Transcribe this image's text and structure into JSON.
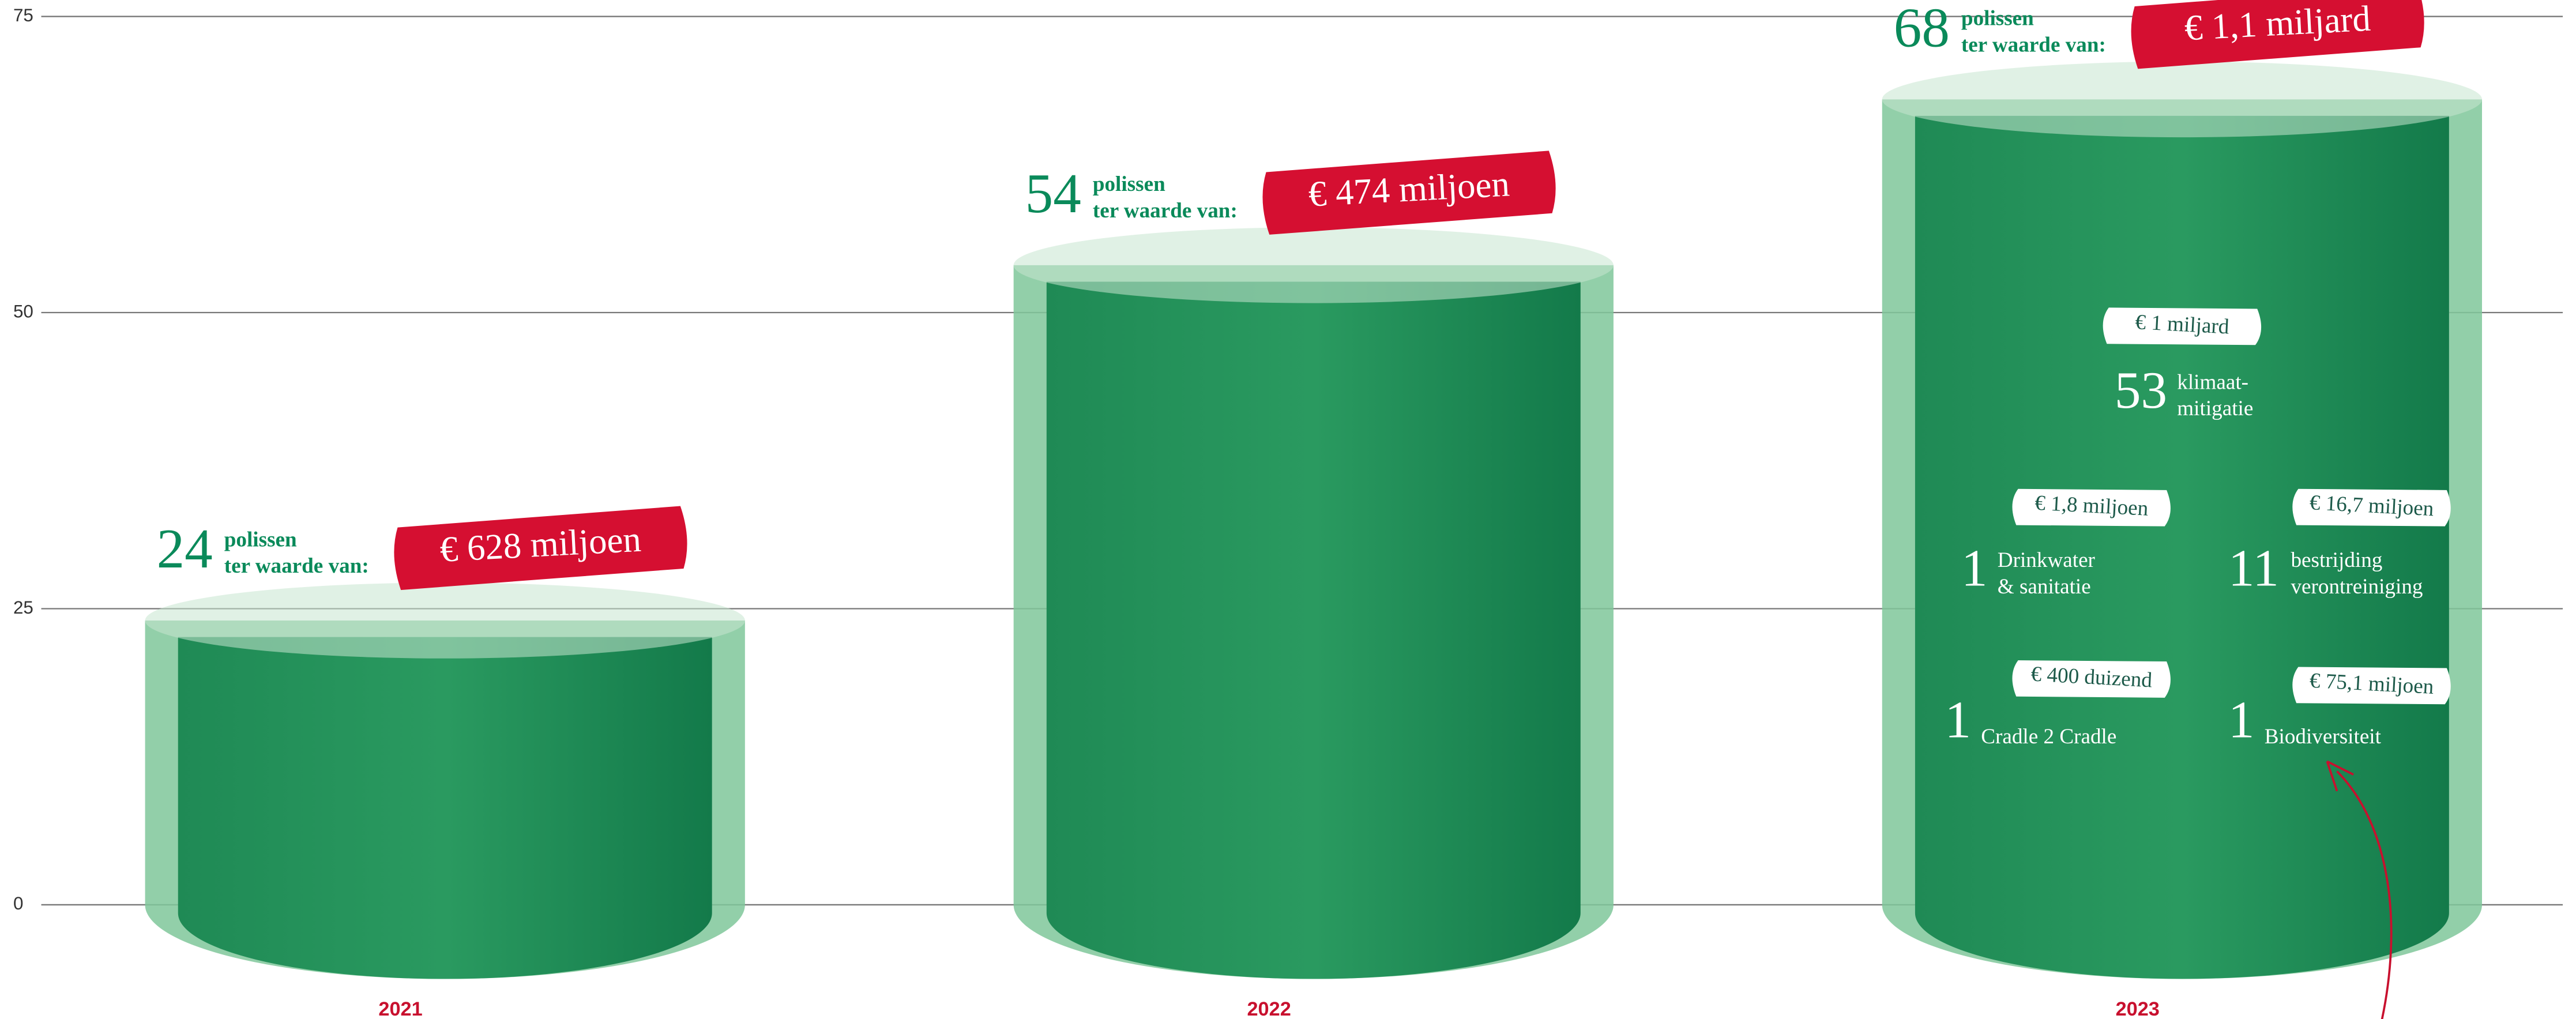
{
  "chart_data": {
    "type": "bar",
    "categories": [
      "2021",
      "2022",
      "2023"
    ],
    "values": [
      24,
      54,
      68
    ],
    "amounts": [
      "€ 628 miljoen",
      "€ 474 miljoen",
      "€ 1,1 miljard"
    ],
    "unit_label": "polissen",
    "amount_prefix": "ter waarde van:",
    "color": "#2f9e63",
    "ylim": [
      0,
      75
    ],
    "yticks": [
      0,
      25,
      50,
      75
    ],
    "grid": true,
    "breakdown": [
      {
        "amount": "€ 1 miljard",
        "count": "53",
        "label": [
          "klimaat-",
          "mitigatie"
        ]
      },
      {
        "amount": "€ 1,8 miljoen",
        "count": "1",
        "label": [
          "Drinkwater",
          "& sanitatie"
        ]
      },
      {
        "amount": "€ 16,7 miljoen",
        "count": "11",
        "label": [
          "bestrijding",
          "verontreiniging"
        ]
      },
      {
        "amount": "€ 400 duizend",
        "count": "1",
        "label": [
          "Cradle 2 Cradle"
        ]
      },
      {
        "amount": "€ 75,1 miljoen",
        "count": "1",
        "label": [
          "Biodiversiteit"
        ]
      }
    ]
  }
}
